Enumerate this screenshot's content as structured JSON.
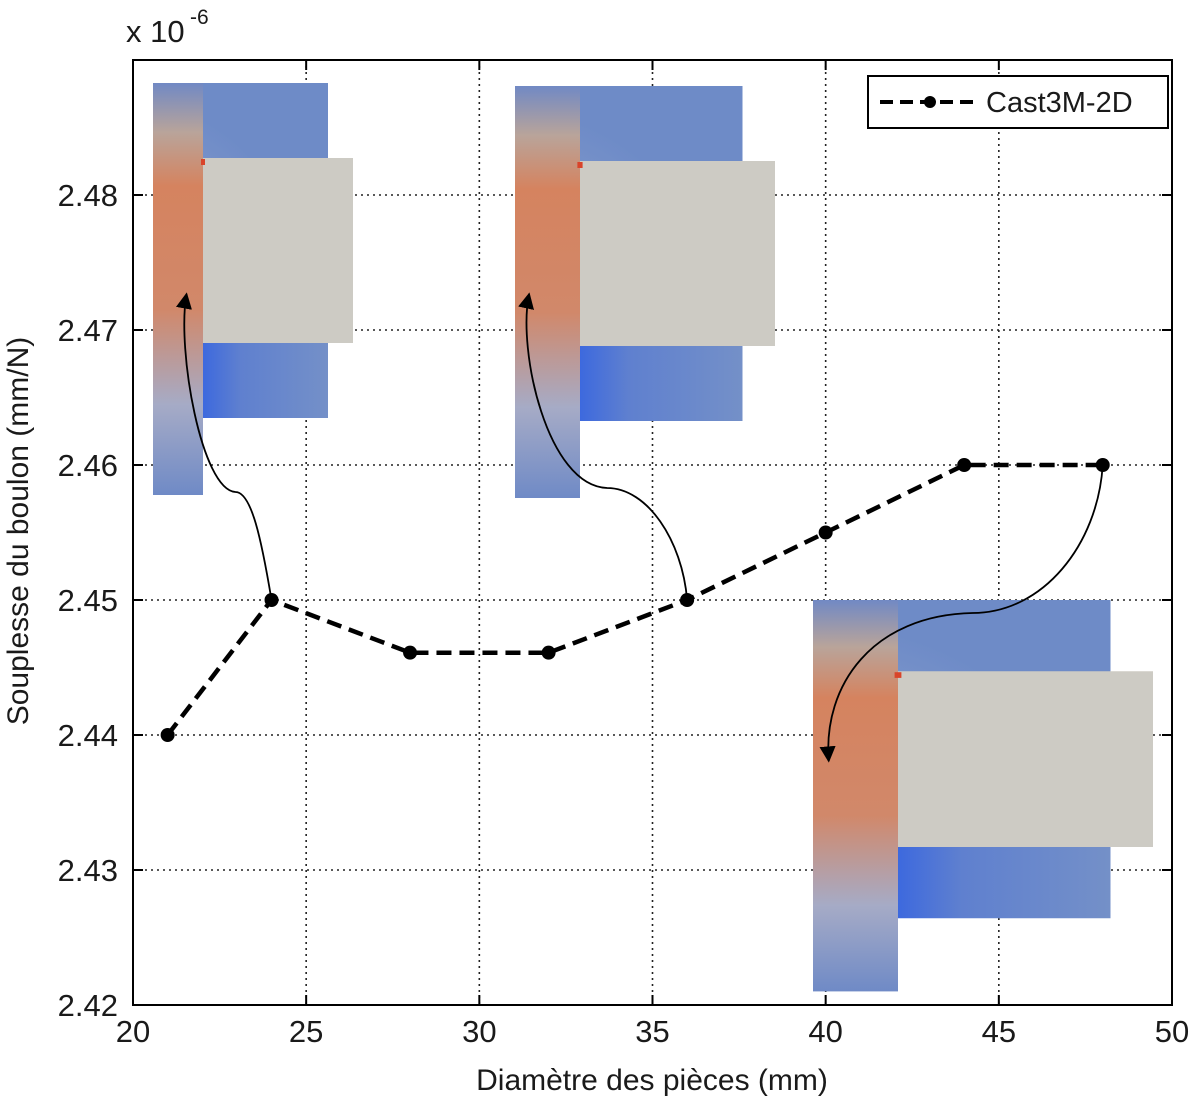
{
  "chart_data": {
    "type": "line",
    "x": [
      21,
      24,
      28,
      32,
      36,
      40,
      44,
      48
    ],
    "series": [
      {
        "name": "Cast3M-2D",
        "y": [
          2.44,
          2.45,
          2.4461,
          2.4461,
          2.45,
          2.455,
          2.46,
          2.46
        ],
        "color": "#000000",
        "line_style": "dashed",
        "marker": "circle"
      }
    ],
    "xlabel": "Diamètre des pièces (mm)",
    "ylabel": "Souplesse du boulon (mm/N)",
    "y_multiplier_label": "x 10",
    "y_multiplier_exponent": "-6",
    "xlim": [
      20,
      50
    ],
    "ylim": [
      2.42,
      2.49
    ],
    "x_ticks": [
      20,
      25,
      30,
      35,
      40,
      45,
      50
    ],
    "x_tick_labels": [
      "20",
      "25",
      "30",
      "35",
      "40",
      "45",
      "50"
    ],
    "y_ticks": [
      2.42,
      2.43,
      2.44,
      2.45,
      2.46,
      2.47,
      2.48
    ],
    "y_tick_labels": [
      "2.42",
      "2.43",
      "2.44",
      "2.45",
      "2.46",
      "2.47",
      "2.48"
    ],
    "grid": true,
    "legend_position": "top-right",
    "insets": [
      {
        "depicts": "fe-stress-map-bolt-model",
        "linked_point_x": 24
      },
      {
        "depicts": "fe-stress-map-bolt-model",
        "linked_point_x": 36
      },
      {
        "depicts": "fe-stress-map-bolt-model",
        "linked_point_x": 48
      }
    ]
  }
}
